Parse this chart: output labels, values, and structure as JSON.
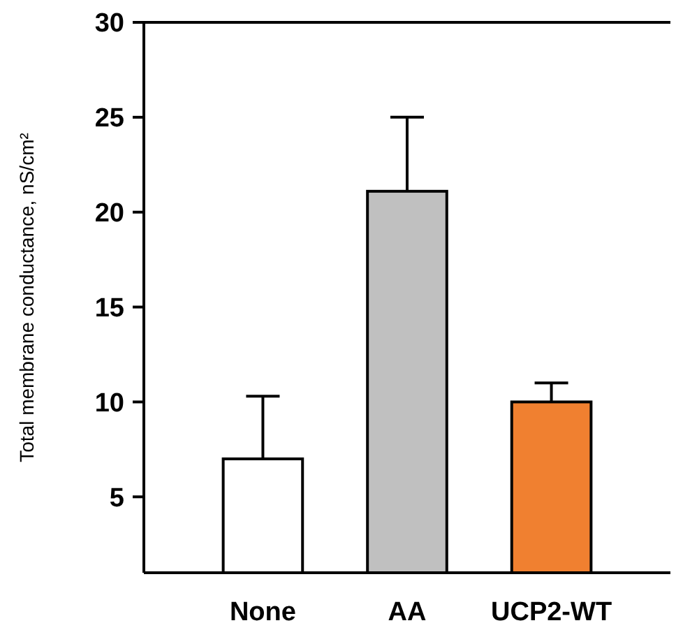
{
  "chart_data": {
    "type": "bar",
    "ylabel": "Total membrane conductance, nS/cm²",
    "categories": [
      "None",
      "AA",
      "UCP2-WT"
    ],
    "values": [
      7.0,
      21.1,
      10.0
    ],
    "colors": [
      "#ffffff",
      "#c0c0c0",
      "#f08030"
    ],
    "errors": [
      3.3,
      3.9,
      1.0
    ],
    "ylim": [
      1,
      30
    ],
    "yticks": [
      5,
      10,
      15,
      20,
      25,
      30
    ],
    "grid": false
  }
}
